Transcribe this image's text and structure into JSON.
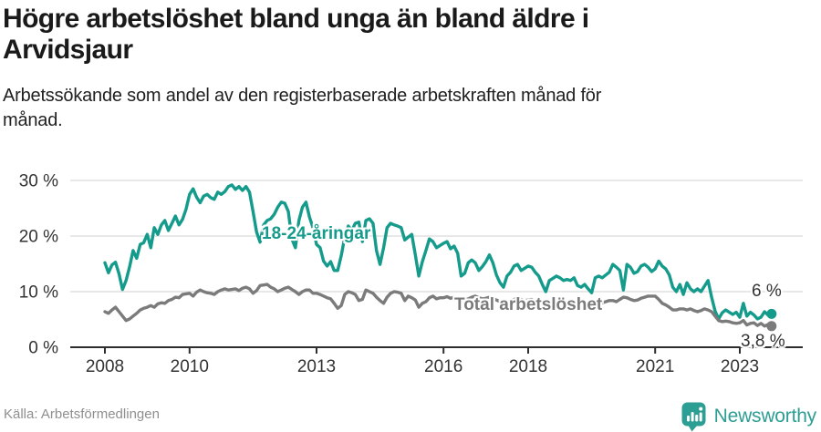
{
  "header": {
    "title_lines": [
      "Högre arbetslöshet bland unga än bland äldre i",
      "Arvidsjaur"
    ],
    "subtitle_lines": [
      "Arbetssökande som andel av den registerbaserade arbetskraften månad för",
      "månad."
    ]
  },
  "chart_data": {
    "type": "line",
    "title": "Arbetssökande som andel av den registerbaserade arbetskraften månad för månad",
    "x_start_year": 2008,
    "points_per_year": 12,
    "xlim": [
      2008.0,
      2023.83
    ],
    "ylim": [
      0,
      30
    ],
    "grid": "horizontal",
    "legend_position": "inline-labels",
    "y_ticks": [
      {
        "value": 0,
        "label": "0 %"
      },
      {
        "value": 10,
        "label": "10 %"
      },
      {
        "value": 20,
        "label": "20 %"
      },
      {
        "value": 30,
        "label": "30 %"
      }
    ],
    "x_ticks": [
      {
        "t": 2008,
        "label": "2008"
      },
      {
        "t": 2010,
        "label": "2010"
      },
      {
        "t": 2013,
        "label": "2013"
      },
      {
        "t": 2016,
        "label": "2016"
      },
      {
        "t": 2018,
        "label": "2018"
      },
      {
        "t": 2021,
        "label": "2021"
      },
      {
        "t": 2023,
        "label": "2023"
      }
    ],
    "style": {
      "grid_color": "#e0e0e0",
      "axis_color": "#2e2e2e",
      "tick_label_color": "#333333",
      "value_label_color": "#333333"
    },
    "series": [
      {
        "name": "18-24-åringar",
        "color": "#149b8b",
        "end_label": "6 %",
        "end_value": 6.0,
        "values": [
          15.2,
          13.4,
          14.8,
          15.3,
          13.2,
          10.4,
          12.0,
          14.5,
          17.4,
          16.0,
          18.5,
          18.8,
          20.3,
          17.9,
          21.5,
          20.3,
          22.0,
          22.8,
          21.0,
          22.3,
          23.6,
          22.0,
          23.0,
          24.8,
          27.5,
          28.5,
          27.0,
          26.0,
          27.2,
          27.5,
          26.9,
          26.6,
          27.9,
          27.5,
          28.0,
          28.9,
          29.2,
          28.4,
          28.9,
          28.2,
          28.9,
          27.9,
          24.4,
          20.7,
          18.9,
          22.0,
          22.8,
          23.1,
          23.9,
          25.2,
          26.1,
          25.9,
          24.4,
          19.5,
          17.9,
          22.8,
          25.2,
          26.1,
          23.4,
          21.5,
          18.5,
          17.9,
          15.5,
          14.6,
          15.4,
          13.8,
          13.8,
          16.5,
          19.8,
          21.8,
          21.0,
          22.3,
          22.5,
          19.0,
          22.8,
          23.1,
          22.3,
          17.4,
          14.9,
          17.9,
          21.5,
          22.3,
          22.0,
          21.8,
          21.5,
          19.3,
          19.8,
          20.3,
          16.6,
          12.8,
          15.4,
          17.4,
          19.5,
          19.0,
          17.9,
          18.3,
          18.7,
          19.0,
          17.7,
          18.2,
          16.9,
          12.8,
          13.3,
          15.2,
          15.7,
          15.2,
          13.8,
          14.5,
          15.4,
          16.6,
          15.2,
          13.0,
          11.6,
          10.8,
          12.8,
          13.5,
          14.6,
          14.9,
          13.8,
          14.2,
          14.6,
          14.4,
          13.5,
          12.8,
          11.3,
          10.0,
          12.0,
          12.4,
          12.8,
          12.5,
          12.0,
          12.2,
          12.0,
          12.5,
          11.1,
          10.8,
          11.3,
          10.5,
          9.8,
          12.5,
          12.8,
          12.5,
          13.0,
          13.5,
          14.9,
          14.4,
          13.8,
          10.3,
          14.9,
          14.4,
          13.3,
          13.6,
          14.6,
          14.9,
          14.4,
          13.6,
          14.1,
          15.5,
          14.6,
          14.1,
          13.0,
          10.8,
          10.0,
          11.3,
          9.5,
          11.6,
          10.5,
          10.0,
          10.5,
          10.0,
          11.0,
          12.0,
          9.0,
          6.5,
          5.1,
          6.2,
          6.7,
          6.3,
          5.9,
          6.3,
          5.4,
          7.9,
          5.6,
          6.3,
          5.8,
          5.1,
          5.4,
          6.4,
          5.8,
          6.0
        ]
      },
      {
        "name": "Total arbetslöshet",
        "color": "#7b7b7b",
        "end_label": "3,8 %",
        "end_value": 3.8,
        "values": [
          6.4,
          6.1,
          6.7,
          7.2,
          6.4,
          5.6,
          4.8,
          5.1,
          5.6,
          6.1,
          6.7,
          7.0,
          7.2,
          7.5,
          7.2,
          7.8,
          8.0,
          7.9,
          8.4,
          8.6,
          9.0,
          8.9,
          9.5,
          9.6,
          9.7,
          9.2,
          9.9,
          10.3,
          10.0,
          9.8,
          9.7,
          9.5,
          10.0,
          10.3,
          10.5,
          10.3,
          10.4,
          10.5,
          10.2,
          10.6,
          10.8,
          10.5,
          9.7,
          10.2,
          11.1,
          11.2,
          11.3,
          10.8,
          10.5,
          10.0,
          10.3,
          10.6,
          10.8,
          10.4,
          10.0,
          9.5,
          10.0,
          10.3,
          10.3,
          9.7,
          9.7,
          9.5,
          9.2,
          8.9,
          8.7,
          7.9,
          7.0,
          7.5,
          9.5,
          10.0,
          9.8,
          9.5,
          8.4,
          8.6,
          10.3,
          10.0,
          9.7,
          9.0,
          8.4,
          7.9,
          9.0,
          9.7,
          10.0,
          9.9,
          9.7,
          8.4,
          9.2,
          8.9,
          8.5,
          7.2,
          7.9,
          8.2,
          8.9,
          9.2,
          8.7,
          8.9,
          8.9,
          9.1,
          8.8,
          9.0,
          8.7,
          8.3,
          8.5,
          8.7,
          9.0,
          9.2,
          8.9,
          8.7,
          8.8,
          9.0,
          8.7,
          8.5,
          8.2,
          7.8,
          8.0,
          8.3,
          8.6,
          8.8,
          8.6,
          8.4,
          8.5,
          8.6,
          8.3,
          8.1,
          8.0,
          7.5,
          7.2,
          7.5,
          7.8,
          8.7,
          8.4,
          8.0,
          7.0,
          7.2,
          7.4,
          7.6,
          7.9,
          7.4,
          7.2,
          7.4,
          7.7,
          8.0,
          8.2,
          8.4,
          8.4,
          8.2,
          8.6,
          9.0,
          8.9,
          8.6,
          8.4,
          8.5,
          8.8,
          9.0,
          9.2,
          9.2,
          9.2,
          8.6,
          7.9,
          7.6,
          7.2,
          6.7,
          6.7,
          6.9,
          6.9,
          6.7,
          6.9,
          6.6,
          6.4,
          6.6,
          6.9,
          6.7,
          6.4,
          5.6,
          4.8,
          4.6,
          4.7,
          4.6,
          4.4,
          4.3,
          4.4,
          4.8,
          4.0,
          4.3,
          4.4,
          3.9,
          4.3,
          3.8,
          4.1,
          3.8
        ]
      }
    ]
  },
  "footer": {
    "source": "Källa: Arbetsförmedlingen",
    "brand": "Newsworthy",
    "brand_color": "#2d9e93"
  }
}
